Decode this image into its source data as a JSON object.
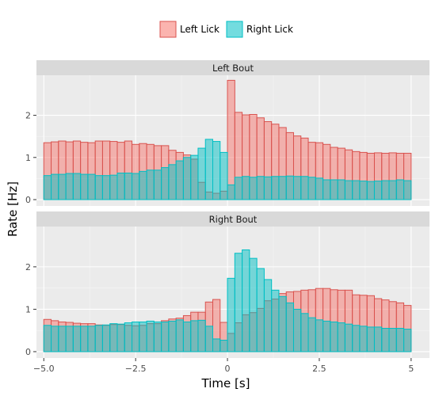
{
  "chart_data": {
    "type": "bar",
    "xlabel": "Time [s]",
    "ylabel": "Rate [Hz]",
    "xlim": [
      -5.2,
      5.5
    ],
    "ylim": [
      -0.15,
      2.95
    ],
    "x_ticks": [
      -5,
      -2.5,
      0,
      2.5,
      5
    ],
    "x_tick_labels": [
      "−5.0",
      "−2.5",
      "0",
      "2.5",
      "5"
    ],
    "y_ticks": [
      0,
      1,
      2
    ],
    "y_tick_labels": [
      "0",
      "1",
      "2"
    ],
    "legend": {
      "placement": "top",
      "entries": [
        {
          "name": "Left Lick",
          "fill": "#F8766D",
          "stroke": "#D9534F"
        },
        {
          "name": "Right Lick",
          "fill": "#00BFC4",
          "stroke": "#00BFC4"
        }
      ]
    },
    "bin_width": 0.2,
    "bin_centers": [
      -4.9,
      -4.7,
      -4.5,
      -4.3,
      -4.1,
      -3.9,
      -3.7,
      -3.5,
      -3.3,
      -3.1,
      -2.9,
      -2.7,
      -2.5,
      -2.3,
      -2.1,
      -1.9,
      -1.7,
      -1.5,
      -1.3,
      -1.1,
      -0.9,
      -0.7,
      -0.5,
      -0.3,
      -0.1,
      0.1,
      0.3,
      0.5,
      0.7,
      0.9,
      1.1,
      1.3,
      1.5,
      1.7,
      1.9,
      2.1,
      2.3,
      2.5,
      2.7,
      2.9,
      3.1,
      3.3,
      3.5,
      3.7,
      3.9,
      4.1,
      4.3,
      4.5,
      4.7,
      4.9
    ],
    "panels": [
      {
        "title": "Left Bout",
        "series": [
          {
            "name": "Left Lick",
            "values": [
              1.35,
              1.37,
              1.39,
              1.37,
              1.39,
              1.36,
              1.35,
              1.39,
              1.39,
              1.38,
              1.36,
              1.39,
              1.31,
              1.33,
              1.31,
              1.28,
              1.28,
              1.17,
              1.12,
              1.06,
              0.96,
              0.41,
              0.18,
              0.15,
              0.2,
              2.83,
              2.07,
              2.01,
              2.02,
              1.94,
              1.85,
              1.79,
              1.71,
              1.59,
              1.51,
              1.46,
              1.36,
              1.35,
              1.31,
              1.24,
              1.22,
              1.18,
              1.14,
              1.12,
              1.1,
              1.11,
              1.1,
              1.11,
              1.1,
              1.1
            ]
          },
          {
            "name": "Right Lick",
            "values": [
              0.57,
              0.6,
              0.6,
              0.62,
              0.62,
              0.6,
              0.6,
              0.57,
              0.57,
              0.58,
              0.63,
              0.63,
              0.62,
              0.67,
              0.7,
              0.7,
              0.76,
              0.83,
              0.92,
              1.0,
              1.05,
              1.22,
              1.43,
              1.38,
              1.12,
              0.35,
              0.53,
              0.55,
              0.53,
              0.55,
              0.54,
              0.55,
              0.55,
              0.56,
              0.55,
              0.55,
              0.53,
              0.51,
              0.47,
              0.47,
              0.47,
              0.45,
              0.45,
              0.44,
              0.43,
              0.44,
              0.45,
              0.45,
              0.47,
              0.45
            ]
          }
        ]
      },
      {
        "title": "Right Bout",
        "series": [
          {
            "name": "Left Lick",
            "values": [
              0.76,
              0.73,
              0.7,
              0.69,
              0.67,
              0.66,
              0.66,
              0.63,
              0.62,
              0.64,
              0.64,
              0.62,
              0.61,
              0.62,
              0.66,
              0.66,
              0.73,
              0.77,
              0.79,
              0.85,
              0.93,
              0.93,
              1.17,
              1.23,
              0.69,
              0.43,
              0.68,
              0.87,
              0.92,
              1.02,
              1.2,
              1.24,
              1.37,
              1.41,
              1.42,
              1.45,
              1.46,
              1.49,
              1.49,
              1.46,
              1.45,
              1.45,
              1.34,
              1.33,
              1.32,
              1.25,
              1.22,
              1.18,
              1.15,
              1.09
            ]
          },
          {
            "name": "Right Lick",
            "values": [
              0.62,
              0.6,
              0.6,
              0.6,
              0.6,
              0.6,
              0.6,
              0.62,
              0.63,
              0.66,
              0.65,
              0.68,
              0.7,
              0.7,
              0.72,
              0.7,
              0.7,
              0.72,
              0.75,
              0.7,
              0.73,
              0.74,
              0.6,
              0.3,
              0.27,
              1.73,
              2.32,
              2.4,
              2.2,
              1.96,
              1.7,
              1.45,
              1.3,
              1.15,
              1.0,
              0.9,
              0.8,
              0.75,
              0.72,
              0.7,
              0.68,
              0.65,
              0.62,
              0.6,
              0.58,
              0.58,
              0.55,
              0.55,
              0.55,
              0.53
            ]
          }
        ]
      }
    ]
  }
}
